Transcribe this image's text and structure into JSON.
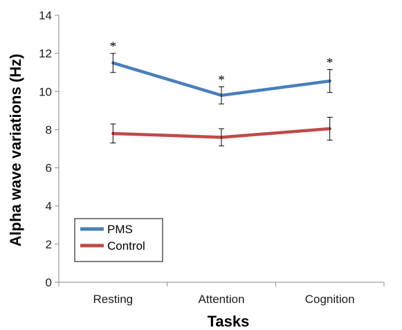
{
  "chart_data": {
    "type": "line",
    "categories": [
      "Resting",
      "Attention",
      "Cognition"
    ],
    "xlabel": "Tasks",
    "ylabel": "Alpha wave variations (Hz)",
    "ylim": [
      0,
      14
    ],
    "yticks": [
      0,
      2,
      4,
      6,
      8,
      10,
      12,
      14
    ],
    "grid": false,
    "legend_position": "bottom-left",
    "series": [
      {
        "name": "PMS",
        "color": "#4a7ebb",
        "values": [
          11.5,
          9.8,
          10.55
        ],
        "errors": [
          0.5,
          0.45,
          0.6
        ],
        "annotations": [
          "*",
          "*",
          "*"
        ]
      },
      {
        "name": "Control",
        "color": "#be4b48",
        "values": [
          7.8,
          7.6,
          8.05
        ],
        "errors": [
          0.5,
          0.45,
          0.6
        ],
        "annotations": [
          "",
          "",
          ""
        ]
      }
    ]
  }
}
